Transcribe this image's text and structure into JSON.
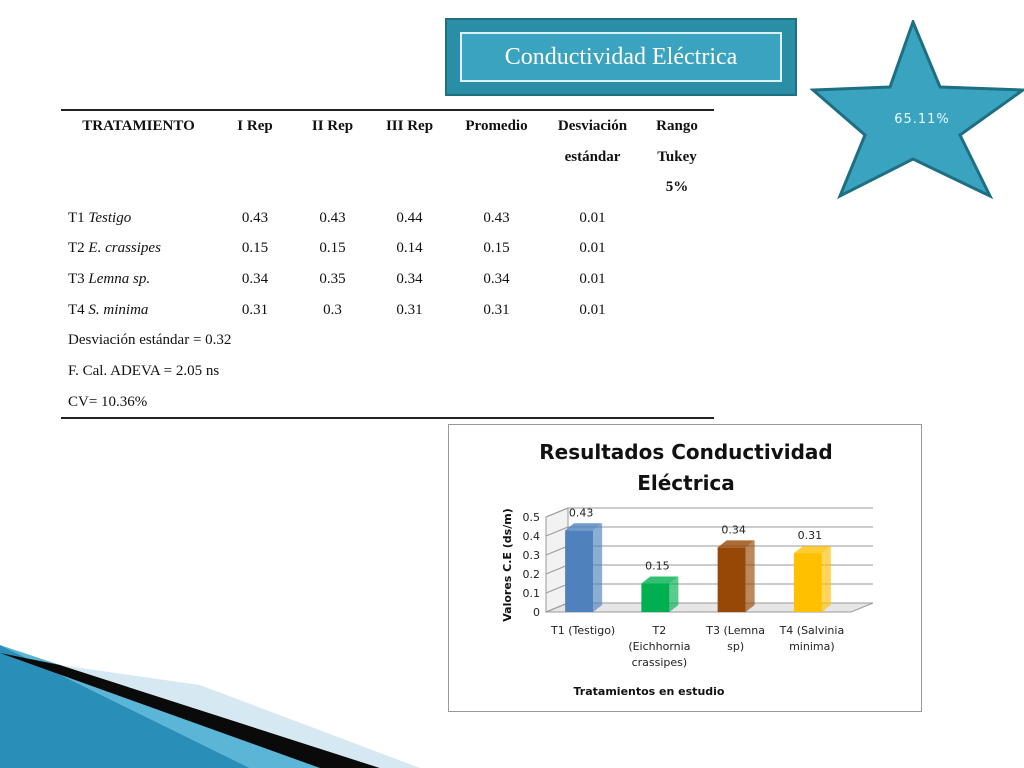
{
  "banner": {
    "title": "Conductividad Eléctrica"
  },
  "badge": {
    "label": "65.11%",
    "color": "#3aa3bf"
  },
  "table": {
    "headers": [
      "TRATAMIENTO",
      "I Rep",
      "II Rep",
      "III Rep",
      "Promedio",
      [
        "Desviación",
        "estándar"
      ],
      [
        "Rango",
        "Tukey",
        "5%"
      ]
    ],
    "rows": [
      {
        "label": "T1 Testigo",
        "prefix": "T1",
        "italic": "Testigo",
        "values": [
          "0.43",
          "0.43",
          "0.44",
          "0.43",
          "0.01",
          ""
        ]
      },
      {
        "label": "T2 E. crassipes",
        "prefix": "T2",
        "italic": "E. crassipes",
        "values": [
          "0.15",
          "0.15",
          "0.14",
          "0.15",
          "0.01",
          ""
        ]
      },
      {
        "label": "T3 Lemna sp.",
        "prefix": "T3",
        "italic": "Lemna sp.",
        "values": [
          "0.34",
          "0.35",
          "0.34",
          "0.34",
          "0.01",
          ""
        ]
      },
      {
        "label": "T4 S. minima",
        "prefix": "T4",
        "italic": "S. minima",
        "values": [
          "0.31",
          "0.3",
          "0.31",
          "0.31",
          "0.01",
          ""
        ]
      }
    ],
    "footer": [
      "Desviación estándar = 0.32",
      "F. Cal. ADEVA = 2.05 ns",
      "CV= 10.36%"
    ]
  },
  "chart_data": {
    "type": "bar",
    "title": "Resultados Conductividad Eléctrica",
    "xlabel": "Tratamientos en estudio",
    "ylabel": "Valores C.E (ds/m)",
    "ylim": [
      0,
      0.5
    ],
    "yticks": [
      "0",
      "0.1",
      "0.2",
      "0.3",
      "0.4",
      "0.5"
    ],
    "grid": true,
    "categories": [
      [
        "T1 (Testigo)"
      ],
      [
        "T2",
        "(Eichhornia",
        "crassipes)"
      ],
      [
        "T3 (Lemna",
        "sp)"
      ],
      [
        "T4 (Salvinia",
        "minima)"
      ]
    ],
    "values": [
      0.43,
      0.15,
      0.34,
      0.31
    ],
    "data_labels": [
      "0.43",
      "0.15",
      "0.34",
      "0.31"
    ],
    "colors": [
      "#4f81bd",
      "#00b050",
      "#974706",
      "#ffc000"
    ]
  }
}
